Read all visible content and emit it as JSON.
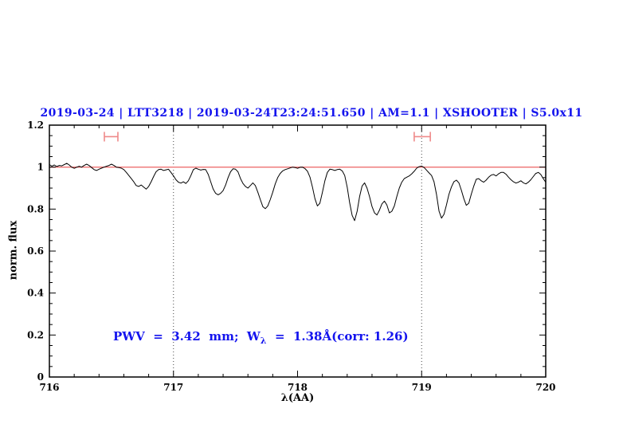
{
  "chart_data": {
    "type": "line",
    "title": "2019-03-24 | LTT3218 | 2019-03-24T23:24:51.650 | AM=1.1 | XSHOOTER | S5.0x11",
    "xlabel": "λ(AA)",
    "ylabel": "norm. flux",
    "xlim": [
      716,
      720
    ],
    "ylim": [
      0,
      1.2
    ],
    "xticks": [
      {
        "v": 716,
        "label": "716"
      },
      {
        "v": 717,
        "label": "717"
      },
      {
        "v": 718,
        "label": "718"
      },
      {
        "v": 719,
        "label": "719"
      },
      {
        "v": 720,
        "label": "720"
      }
    ],
    "x_minor_step": 0.2,
    "yticks": [
      {
        "v": 0,
        "label": "0"
      },
      {
        "v": 0.2,
        "label": "0.2"
      },
      {
        "v": 0.4,
        "label": "0.4"
      },
      {
        "v": 0.6,
        "label": "0.6"
      },
      {
        "v": 0.8,
        "label": "0.8"
      },
      {
        "v": 1,
        "label": "1"
      },
      {
        "v": 1.2,
        "label": "1.2"
      }
    ],
    "y_minor_step": 0.05,
    "grid": "dotted-vlines-only",
    "legend": "none",
    "dotted_vlines": [
      717,
      719
    ],
    "continuum_line": {
      "y": 1.0
    },
    "range_markers": [
      {
        "x1": 716.443,
        "x2": 716.552,
        "y_flux": 1.145
      },
      {
        "x1": 718.94,
        "x2": 719.07,
        "y_flux": 1.145
      }
    ],
    "annotation": {
      "pre": "PWV  =  3.42  mm;  W",
      "sub": "λ",
      "post": "  =  1.38Å(corr: 1.26)",
      "full_text": "PWV = 3.42 mm; W_λ = 1.38Å(corr: 1.26)"
    },
    "colors": {
      "accent_text": "#1414ee",
      "continuum": "#ee7070",
      "marker": "#ef8a8a",
      "spectrum": "#000000",
      "dotted": "#444444",
      "frame": "#000000"
    },
    "series": [
      {
        "name": "normalized telluric spectrum",
        "color": "#000000",
        "points": [
          [
            716.0,
            1.012
          ],
          [
            716.02,
            1.005
          ],
          [
            716.04,
            1.01
          ],
          [
            716.06,
            1.003
          ],
          [
            716.08,
            1.008
          ],
          [
            716.1,
            1.006
          ],
          [
            716.12,
            1.012
          ],
          [
            716.14,
            1.018
          ],
          [
            716.16,
            1.01
          ],
          [
            716.18,
            1.0
          ],
          [
            716.2,
            0.994
          ],
          [
            716.22,
            1.0
          ],
          [
            716.24,
            1.004
          ],
          [
            716.26,
            1.0
          ],
          [
            716.28,
            1.008
          ],
          [
            716.3,
            1.014
          ],
          [
            716.32,
            1.008
          ],
          [
            716.34,
            0.998
          ],
          [
            716.36,
            0.988
          ],
          [
            716.38,
            0.984
          ],
          [
            716.4,
            0.99
          ],
          [
            716.42,
            0.995
          ],
          [
            716.44,
            1.0
          ],
          [
            716.46,
            1.004
          ],
          [
            716.48,
            1.008
          ],
          [
            716.5,
            1.014
          ],
          [
            716.52,
            1.008
          ],
          [
            716.54,
            1.0
          ],
          [
            716.56,
            0.998
          ],
          [
            716.58,
            0.995
          ],
          [
            716.6,
            0.988
          ],
          [
            716.62,
            0.975
          ],
          [
            716.64,
            0.96
          ],
          [
            716.66,
            0.945
          ],
          [
            716.68,
            0.93
          ],
          [
            716.7,
            0.912
          ],
          [
            716.72,
            0.908
          ],
          [
            716.74,
            0.915
          ],
          [
            716.76,
            0.905
          ],
          [
            716.78,
            0.895
          ],
          [
            716.8,
            0.908
          ],
          [
            716.82,
            0.93
          ],
          [
            716.84,
            0.955
          ],
          [
            716.86,
            0.978
          ],
          [
            716.88,
            0.988
          ],
          [
            716.9,
            0.99
          ],
          [
            716.92,
            0.984
          ],
          [
            716.94,
            0.987
          ],
          [
            716.96,
            0.99
          ],
          [
            716.98,
            0.975
          ],
          [
            717.0,
            0.958
          ],
          [
            717.02,
            0.94
          ],
          [
            717.04,
            0.928
          ],
          [
            717.06,
            0.924
          ],
          [
            717.08,
            0.93
          ],
          [
            717.1,
            0.922
          ],
          [
            717.12,
            0.935
          ],
          [
            717.14,
            0.96
          ],
          [
            717.16,
            0.988
          ],
          [
            717.18,
            0.995
          ],
          [
            717.2,
            0.99
          ],
          [
            717.22,
            0.986
          ],
          [
            717.24,
            0.989
          ],
          [
            717.26,
            0.988
          ],
          [
            717.28,
            0.965
          ],
          [
            717.3,
            0.93
          ],
          [
            717.32,
            0.895
          ],
          [
            717.34,
            0.875
          ],
          [
            717.36,
            0.868
          ],
          [
            717.38,
            0.875
          ],
          [
            717.4,
            0.888
          ],
          [
            717.42,
            0.915
          ],
          [
            717.44,
            0.95
          ],
          [
            717.46,
            0.978
          ],
          [
            717.48,
            0.992
          ],
          [
            717.5,
            0.99
          ],
          [
            717.52,
            0.978
          ],
          [
            717.54,
            0.945
          ],
          [
            717.56,
            0.922
          ],
          [
            717.58,
            0.908
          ],
          [
            717.6,
            0.9
          ],
          [
            717.62,
            0.912
          ],
          [
            717.64,
            0.925
          ],
          [
            717.66,
            0.912
          ],
          [
            717.68,
            0.88
          ],
          [
            717.7,
            0.845
          ],
          [
            717.72,
            0.812
          ],
          [
            717.74,
            0.802
          ],
          [
            717.76,
            0.815
          ],
          [
            717.78,
            0.845
          ],
          [
            717.8,
            0.88
          ],
          [
            717.82,
            0.92
          ],
          [
            717.84,
            0.95
          ],
          [
            717.86,
            0.97
          ],
          [
            717.88,
            0.982
          ],
          [
            717.9,
            0.988
          ],
          [
            717.92,
            0.992
          ],
          [
            717.94,
            0.996
          ],
          [
            717.96,
            1.0
          ],
          [
            717.98,
            0.998
          ],
          [
            718.0,
            0.994
          ],
          [
            718.02,
            0.999
          ],
          [
            718.04,
            1.0
          ],
          [
            718.06,
            0.993
          ],
          [
            718.08,
            0.98
          ],
          [
            718.1,
            0.952
          ],
          [
            718.12,
            0.905
          ],
          [
            718.14,
            0.85
          ],
          [
            718.16,
            0.815
          ],
          [
            718.18,
            0.828
          ],
          [
            718.2,
            0.88
          ],
          [
            718.22,
            0.935
          ],
          [
            718.24,
            0.975
          ],
          [
            718.26,
            0.99
          ],
          [
            718.28,
            0.988
          ],
          [
            718.3,
            0.984
          ],
          [
            718.32,
            0.988
          ],
          [
            718.34,
            0.99
          ],
          [
            718.36,
            0.982
          ],
          [
            718.38,
            0.96
          ],
          [
            718.4,
            0.905
          ],
          [
            718.42,
            0.83
          ],
          [
            718.44,
            0.77
          ],
          [
            718.46,
            0.745
          ],
          [
            718.48,
            0.79
          ],
          [
            718.5,
            0.86
          ],
          [
            718.52,
            0.91
          ],
          [
            718.54,
            0.925
          ],
          [
            718.56,
            0.9
          ],
          [
            718.58,
            0.86
          ],
          [
            718.6,
            0.812
          ],
          [
            718.62,
            0.782
          ],
          [
            718.64,
            0.772
          ],
          [
            718.66,
            0.795
          ],
          [
            718.68,
            0.825
          ],
          [
            718.7,
            0.838
          ],
          [
            718.72,
            0.82
          ],
          [
            718.74,
            0.782
          ],
          [
            718.76,
            0.79
          ],
          [
            718.78,
            0.815
          ],
          [
            718.8,
            0.86
          ],
          [
            718.82,
            0.9
          ],
          [
            718.84,
            0.928
          ],
          [
            718.86,
            0.945
          ],
          [
            718.88,
            0.952
          ],
          [
            718.9,
            0.958
          ],
          [
            718.92,
            0.968
          ],
          [
            718.94,
            0.98
          ],
          [
            718.96,
            0.995
          ],
          [
            718.98,
            1.002
          ],
          [
            719.0,
            1.005
          ],
          [
            719.02,
            0.998
          ],
          [
            719.04,
            0.985
          ],
          [
            719.06,
            0.972
          ],
          [
            719.08,
            0.96
          ],
          [
            719.1,
            0.93
          ],
          [
            719.12,
            0.87
          ],
          [
            719.14,
            0.79
          ],
          [
            719.16,
            0.757
          ],
          [
            719.18,
            0.775
          ],
          [
            719.2,
            0.82
          ],
          [
            719.22,
            0.87
          ],
          [
            719.24,
            0.905
          ],
          [
            719.26,
            0.93
          ],
          [
            719.28,
            0.938
          ],
          [
            719.3,
            0.925
          ],
          [
            719.32,
            0.89
          ],
          [
            719.34,
            0.85
          ],
          [
            719.36,
            0.818
          ],
          [
            719.38,
            0.828
          ],
          [
            719.4,
            0.87
          ],
          [
            719.42,
            0.91
          ],
          [
            719.44,
            0.942
          ],
          [
            719.46,
            0.945
          ],
          [
            719.48,
            0.935
          ],
          [
            719.5,
            0.928
          ],
          [
            719.52,
            0.938
          ],
          [
            719.54,
            0.952
          ],
          [
            719.56,
            0.962
          ],
          [
            719.58,
            0.965
          ],
          [
            719.6,
            0.958
          ],
          [
            719.62,
            0.968
          ],
          [
            719.64,
            0.975
          ],
          [
            719.66,
            0.975
          ],
          [
            719.68,
            0.966
          ],
          [
            719.7,
            0.952
          ],
          [
            719.72,
            0.94
          ],
          [
            719.74,
            0.93
          ],
          [
            719.76,
            0.924
          ],
          [
            719.78,
            0.928
          ],
          [
            719.8,
            0.935
          ],
          [
            719.82,
            0.925
          ],
          [
            719.84,
            0.92
          ],
          [
            719.86,
            0.928
          ],
          [
            719.88,
            0.94
          ],
          [
            719.9,
            0.955
          ],
          [
            719.92,
            0.97
          ],
          [
            719.94,
            0.975
          ],
          [
            719.96,
            0.965
          ],
          [
            719.98,
            0.945
          ],
          [
            720.0,
            0.928
          ]
        ]
      }
    ]
  }
}
